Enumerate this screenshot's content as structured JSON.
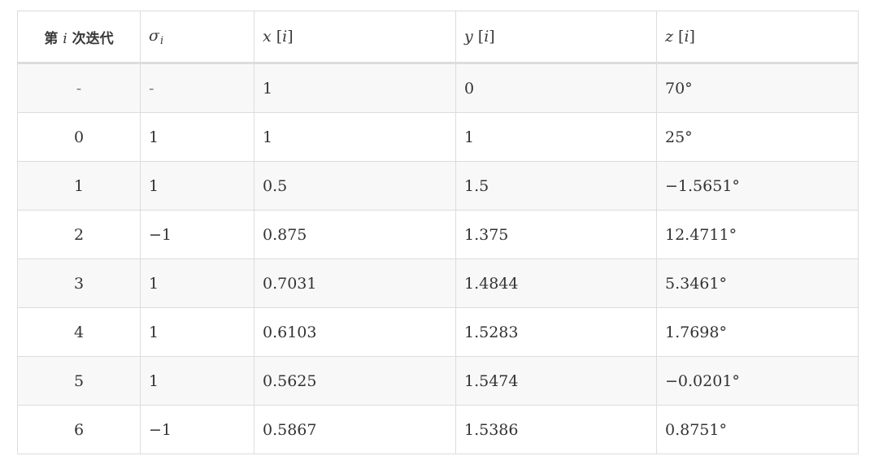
{
  "table": {
    "headers": {
      "iteration_prefix": "第",
      "iteration_var": "i",
      "iteration_suffix": "次迭代",
      "sigma_base": "σ",
      "sigma_sub": "i",
      "x_var": "x",
      "x_open": " [",
      "x_idx": "i",
      "x_close": "]",
      "y_var": "y",
      "y_open": " [",
      "y_idx": "i",
      "y_close": "]",
      "z_var": "z",
      "z_open": " [",
      "z_idx": "i",
      "z_close": "]"
    },
    "rows": [
      {
        "iter": "-",
        "sigma": "-",
        "x": "1",
        "y": "0",
        "z": "70°"
      },
      {
        "iter": "0",
        "sigma": "1",
        "x": "1",
        "y": "1",
        "z": "25°"
      },
      {
        "iter": "1",
        "sigma": "1",
        "x": "0.5",
        "y": "1.5",
        "z": "−1.5651°"
      },
      {
        "iter": "2",
        "sigma": "−1",
        "x": "0.875",
        "y": "1.375",
        "z": "12.4711°"
      },
      {
        "iter": "3",
        "sigma": "1",
        "x": "0.7031",
        "y": "1.4844",
        "z": "5.3461°"
      },
      {
        "iter": "4",
        "sigma": "1",
        "x": "0.6103",
        "y": "1.5283",
        "z": "1.7698°"
      },
      {
        "iter": "5",
        "sigma": "1",
        "x": "0.5625",
        "y": "1.5474",
        "z": "−0.0201°"
      },
      {
        "iter": "6",
        "sigma": "−1",
        "x": "0.5867",
        "y": "1.5386",
        "z": "0.8751°"
      }
    ]
  }
}
